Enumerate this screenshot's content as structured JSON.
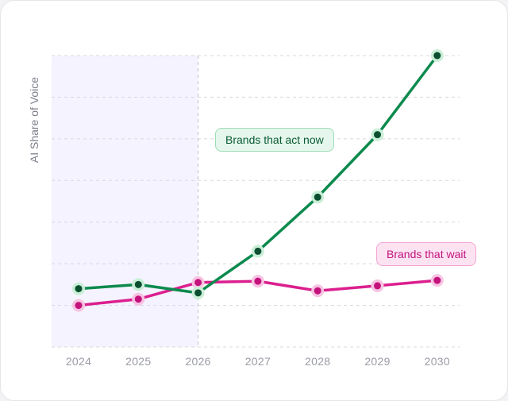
{
  "colors": {
    "act": "#0c8a4d",
    "act_dot": "#0b4f30",
    "act_halo": "#c9eed6",
    "wait": "#db1f8e",
    "wait_dot": "#c4127c",
    "wait_halo": "#f7c3e2",
    "highlight_band": "#f5f3ff"
  },
  "chart_data": {
    "type": "line",
    "ylabel": "AI Share of Voice",
    "xlabel": "",
    "x": [
      "2024",
      "2025",
      "2026",
      "2027",
      "2028",
      "2029",
      "2030"
    ],
    "ylim": [
      0,
      7
    ],
    "grid": true,
    "highlight_range": [
      "2024",
      "2026"
    ],
    "series": [
      {
        "name": "Brands that act now",
        "values": [
          1.4,
          1.5,
          1.3,
          2.3,
          3.6,
          5.1,
          7.0
        ]
      },
      {
        "name": "Brands that wait",
        "values": [
          1.0,
          1.15,
          1.55,
          1.58,
          1.35,
          1.47,
          1.6
        ]
      }
    ]
  }
}
